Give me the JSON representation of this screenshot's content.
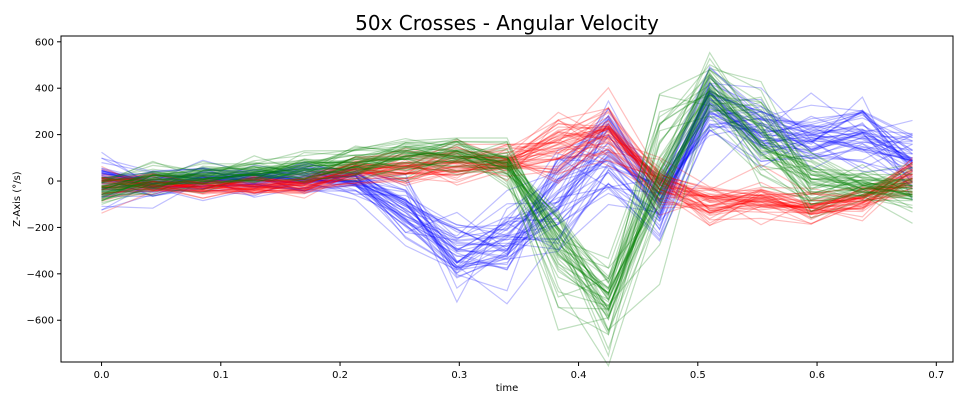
{
  "chart_data": {
    "type": "line",
    "title": "50x Crosses - Angular Velocity",
    "xlabel": "time",
    "ylabel": "Z-Axis (°/s)",
    "xlim": [
      -0.034,
      0.714
    ],
    "ylim": [
      -780,
      625
    ],
    "xticks": [
      0.0,
      0.1,
      0.2,
      0.3,
      0.4,
      0.5,
      0.6,
      0.7
    ],
    "xtick_labels": [
      "0.0",
      "0.1",
      "0.2",
      "0.3",
      "0.4",
      "0.5",
      "0.6",
      "0.7"
    ],
    "yticks": [
      -600,
      -400,
      -200,
      0,
      200,
      400,
      600
    ],
    "ytick_labels": [
      "−600",
      "−400",
      "−200",
      "0",
      "200",
      "400",
      "600"
    ],
    "grid": false,
    "legend": "none",
    "line_opacity": 0.25,
    "x": [
      0.0,
      0.043,
      0.085,
      0.128,
      0.17,
      0.213,
      0.255,
      0.298,
      0.34,
      0.383,
      0.425,
      0.468,
      0.51,
      0.553,
      0.595,
      0.638,
      0.68
    ],
    "series_groups": [
      {
        "color": "#0000ff",
        "count": 50,
        "mean": [
          0,
          -10,
          5,
          0,
          5,
          0,
          -120,
          -300,
          -280,
          -80,
          120,
          -100,
          320,
          200,
          180,
          200,
          80
        ],
        "spread": [
          60,
          45,
          40,
          40,
          40,
          45,
          80,
          110,
          110,
          130,
          140,
          80,
          110,
          90,
          70,
          90,
          90
        ]
      },
      {
        "color": "#ff0000",
        "count": 50,
        "mean": [
          -10,
          -20,
          -25,
          -20,
          -15,
          40,
          60,
          70,
          70,
          150,
          200,
          0,
          -100,
          -90,
          -120,
          -80,
          10
        ],
        "spread": [
          40,
          30,
          25,
          25,
          25,
          40,
          45,
          50,
          50,
          90,
          80,
          60,
          60,
          50,
          45,
          45,
          55
        ]
      },
      {
        "color": "#008000",
        "count": 50,
        "mean": [
          -40,
          10,
          25,
          40,
          50,
          80,
          110,
          120,
          80,
          -280,
          -520,
          50,
          380,
          200,
          0,
          -20,
          -40
        ],
        "spread": [
          40,
          40,
          35,
          35,
          40,
          40,
          45,
          45,
          60,
          140,
          110,
          150,
          90,
          110,
          70,
          45,
          50
        ]
      }
    ]
  }
}
